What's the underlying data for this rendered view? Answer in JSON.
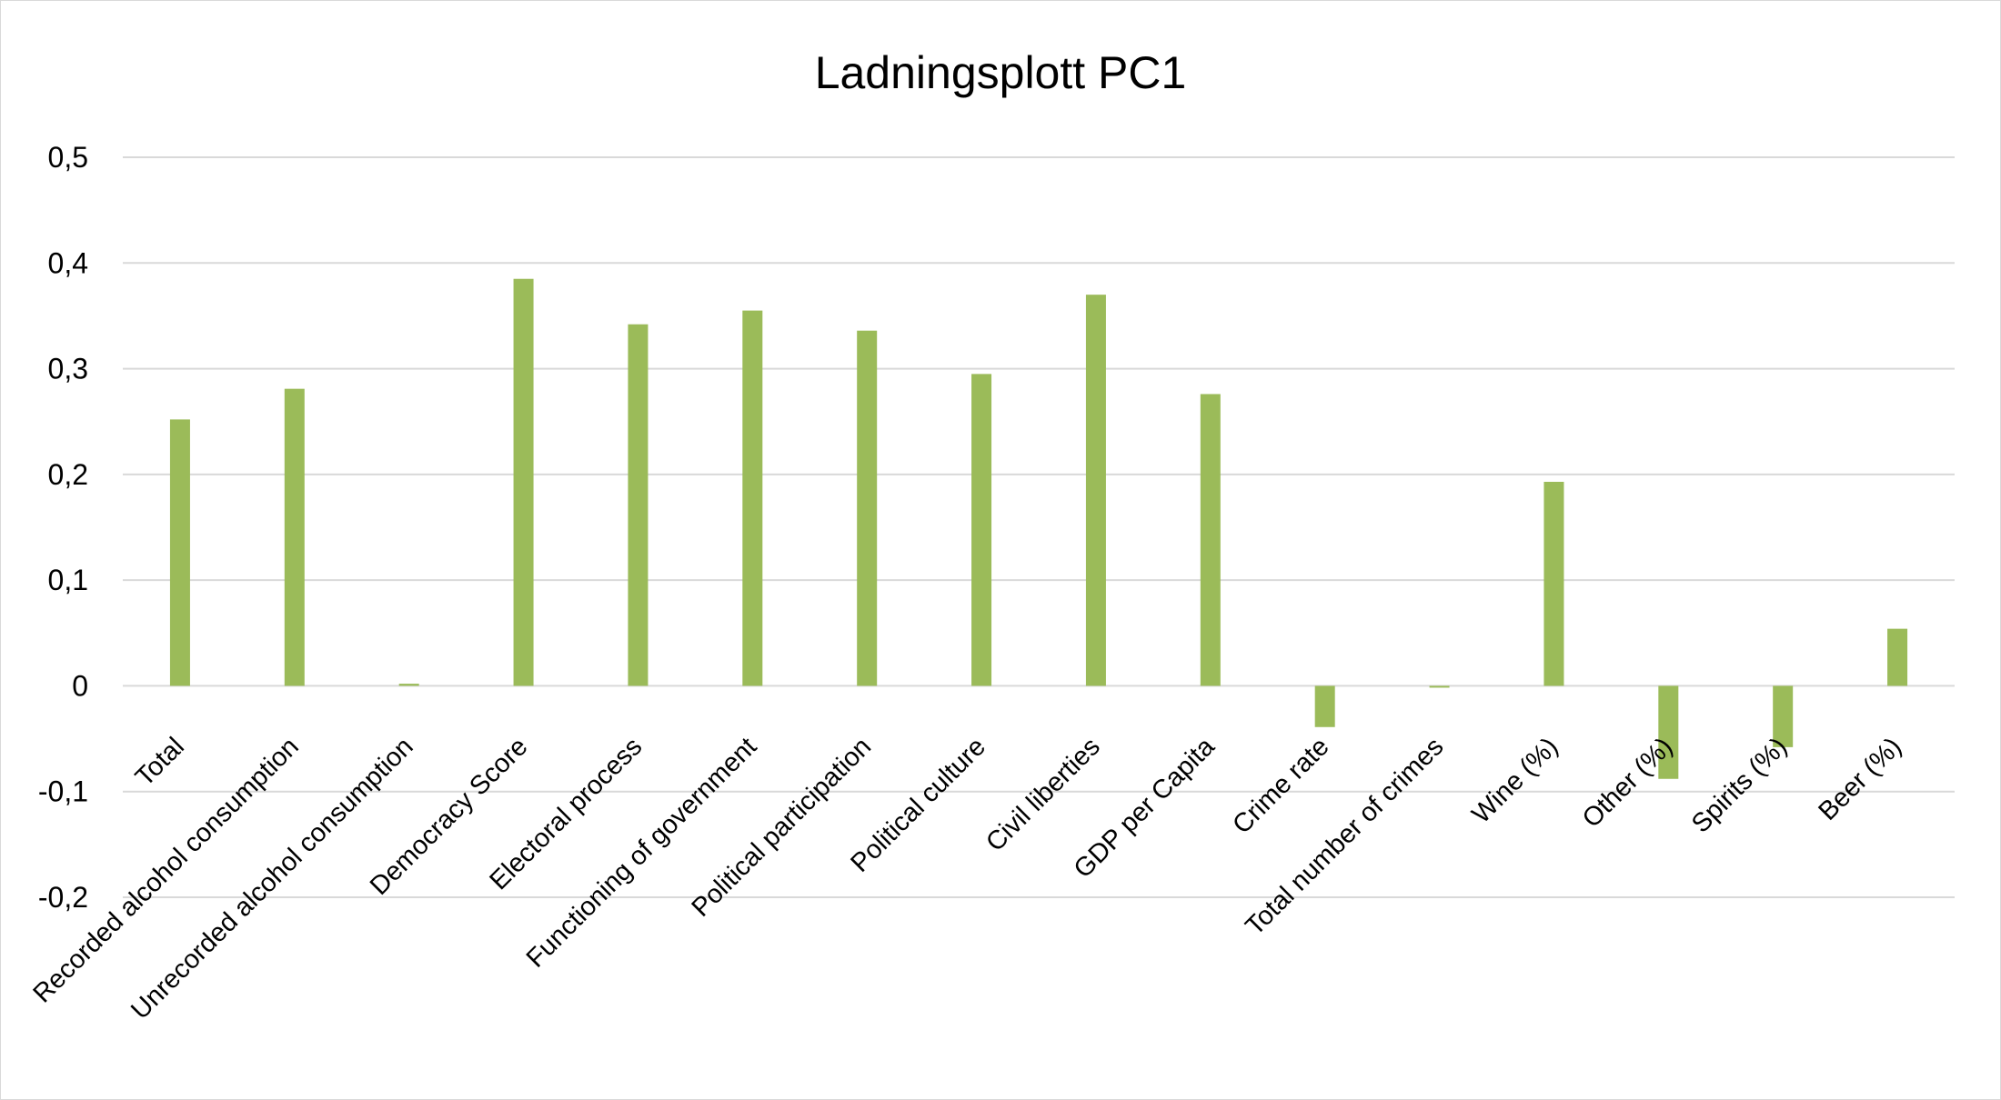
{
  "chart_data": {
    "type": "bar",
    "title": "Ladningsplott PC1",
    "xlabel": "",
    "ylabel": "",
    "ylim": [
      -0.2,
      0.5
    ],
    "ytick_values": [
      -0.2,
      -0.1,
      0,
      0.1,
      0.2,
      0.3,
      0.4,
      0.5
    ],
    "ytick_labels": [
      "-0,2",
      "-0,1",
      "0",
      "0,1",
      "0,2",
      "0,3",
      "0,4",
      "0,5"
    ],
    "grid": true,
    "legend": "none",
    "bar_color": "#9bbb59",
    "categories": [
      "Total",
      "Recorded alcohol consumption",
      "Unrecorded alcohol consumption",
      "Democracy Score",
      "Electoral process",
      "Functioning of government",
      "Political participation",
      "Political culture",
      "Civil liberties",
      "GDP per Capita",
      "Crime rate",
      "Total number of crimes",
      "Wine (%)",
      "Other (%)",
      "Spirits (%)",
      "Beer (%)"
    ],
    "values": [
      0.252,
      0.281,
      0.002,
      0.385,
      0.342,
      0.355,
      0.336,
      0.295,
      0.37,
      0.276,
      -0.039,
      0.0,
      0.193,
      -0.088,
      -0.058,
      0.054
    ]
  }
}
